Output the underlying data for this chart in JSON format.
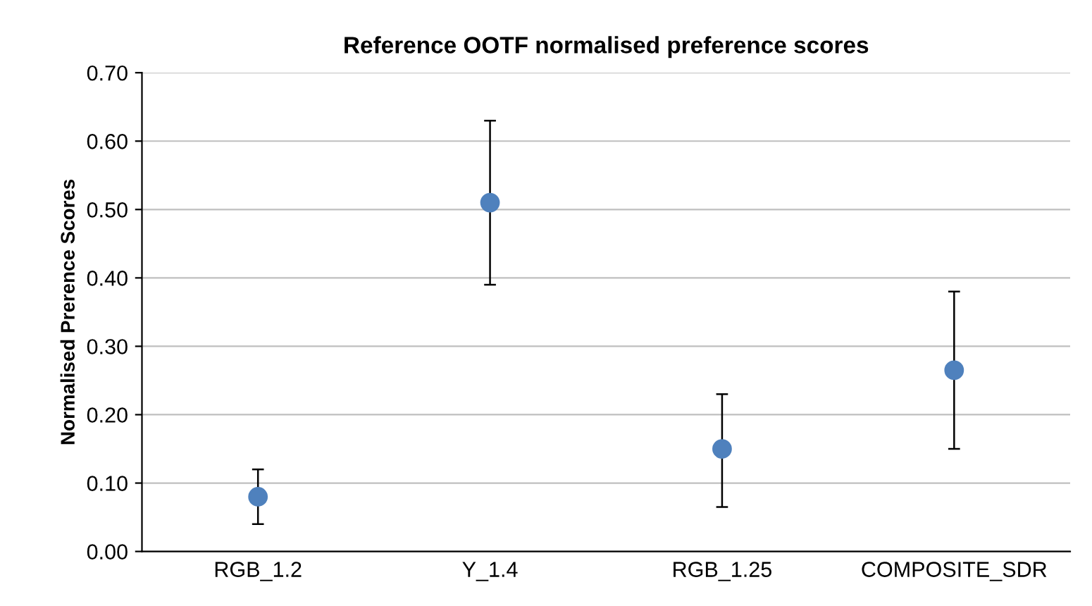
{
  "chart_data": {
    "type": "scatter",
    "title": "Reference OOTF normalised preference scores",
    "ylabel": "Normalised Prerence Scores",
    "categories": [
      "RGB_1.2",
      "Y_1.4",
      "RGB_1.25",
      "COMPOSITE_SDR"
    ],
    "values": [
      0.08,
      0.51,
      0.15,
      0.265
    ],
    "errors": [
      [
        0.04,
        0.12
      ],
      [
        0.39,
        0.63
      ],
      [
        0.065,
        0.23
      ],
      [
        0.15,
        0.38
      ]
    ],
    "color": "#4f81bd",
    "marker": "circle",
    "ylim": [
      0,
      0.7
    ],
    "yticks": [
      {
        "value": 0,
        "label": "0.00"
      },
      {
        "value": 0.1,
        "label": "0.10"
      },
      {
        "value": 0.2,
        "label": "0.20"
      },
      {
        "value": 0.3,
        "label": "0.30"
      },
      {
        "value": 0.4,
        "label": "0.40"
      },
      {
        "value": 0.5,
        "label": "0.50"
      },
      {
        "value": 0.6,
        "label": "0.60"
      },
      {
        "value": 0.7,
        "label": "0.70"
      }
    ],
    "grid": "y"
  }
}
